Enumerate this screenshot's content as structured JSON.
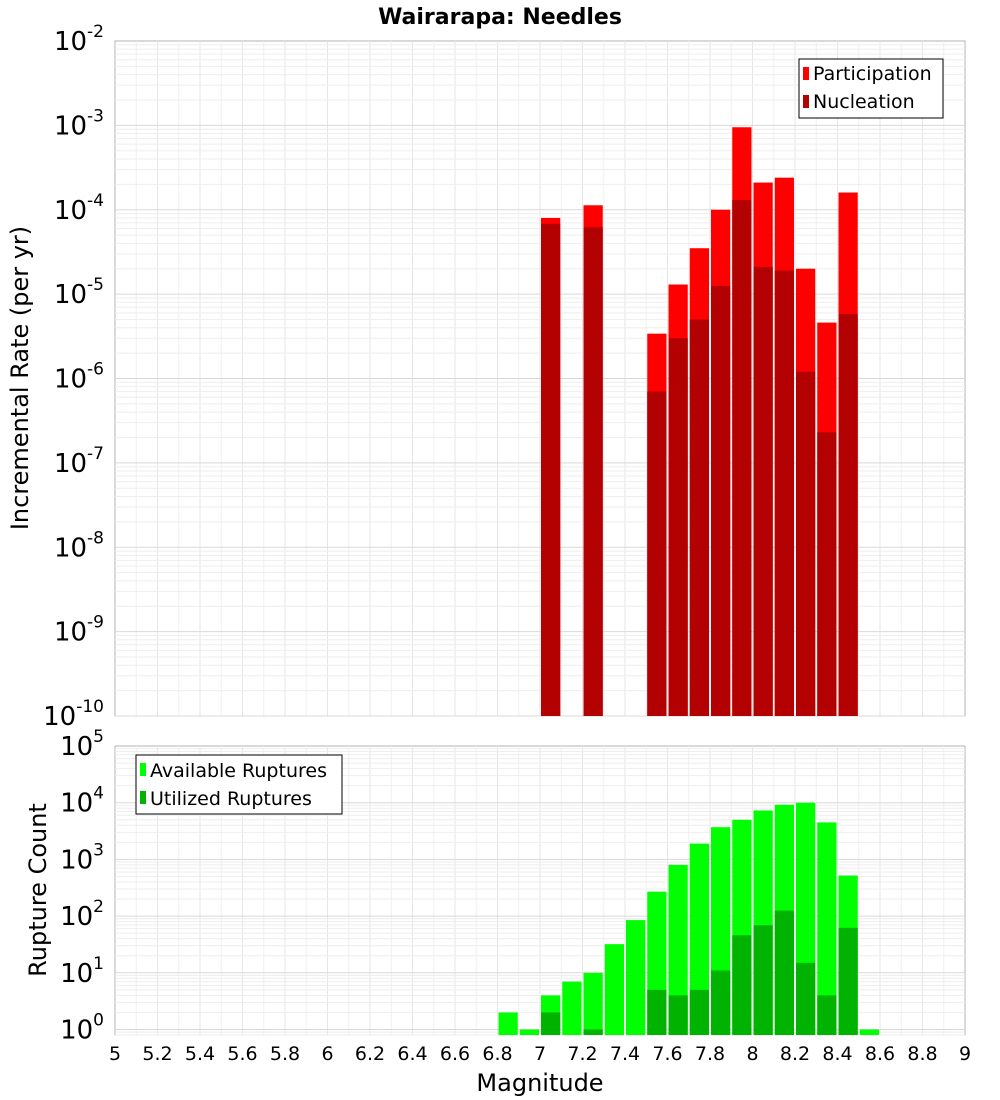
{
  "title": "Wairarapa: Needles",
  "chart_data": [
    {
      "type": "bar",
      "panel": "top",
      "ylabel": "Incremental Rate (per yr)",
      "yscale": "log",
      "ylim": [
        1e-10,
        0.01
      ],
      "xlim": [
        5,
        9
      ],
      "grid": true,
      "legend_position": "top-right",
      "series": [
        {
          "name": "Participation",
          "color": "#ff0000",
          "x": [
            7.05,
            7.25,
            7.55,
            7.65,
            7.75,
            7.85,
            7.95,
            8.05,
            8.15,
            8.25,
            8.35,
            8.45
          ],
          "values": [
            8e-05,
            0.000113,
            3.4e-06,
            1.3e-05,
            3.5e-05,
            0.0001,
            0.00095,
            0.00021,
            0.00024,
            2e-05,
            4.6e-06,
            0.00016
          ]
        },
        {
          "name": "Nucleation",
          "color": "#b30000",
          "x": [
            7.05,
            7.25,
            7.55,
            7.65,
            7.75,
            7.85,
            7.95,
            8.05,
            8.15,
            8.25,
            8.35,
            8.45
          ],
          "values": [
            6.8e-05,
            6.2e-05,
            7e-07,
            3e-06,
            5e-06,
            1.25e-05,
            0.00013,
            2.1e-05,
            1.9e-05,
            1.2e-06,
            2.3e-07,
            5.8e-06
          ]
        }
      ],
      "yticks": [
        {
          "base": "10",
          "exp": "-2"
        },
        {
          "base": "10",
          "exp": "-3"
        },
        {
          "base": "10",
          "exp": "-4"
        },
        {
          "base": "10",
          "exp": "-5"
        },
        {
          "base": "10",
          "exp": "-6"
        },
        {
          "base": "10",
          "exp": "-7"
        },
        {
          "base": "10",
          "exp": "-8"
        },
        {
          "base": "10",
          "exp": "-9"
        },
        {
          "base": "10",
          "exp": "-10"
        }
      ]
    },
    {
      "type": "bar",
      "panel": "bottom",
      "xlabel": "Magnitude",
      "ylabel": "Rupture Count",
      "yscale": "log",
      "ylim": [
        0.8,
        100000.0
      ],
      "xlim": [
        5,
        9
      ],
      "grid": true,
      "legend_position": "top-left",
      "series": [
        {
          "name": "Available Ruptures",
          "color": "#00ff00",
          "x": [
            6.85,
            6.95,
            7.05,
            7.15,
            7.25,
            7.35,
            7.45,
            7.55,
            7.65,
            7.75,
            7.85,
            7.95,
            8.05,
            8.15,
            8.25,
            8.35,
            8.45,
            8.55
          ],
          "values": [
            2,
            1,
            4,
            7,
            10,
            32,
            85,
            270,
            800,
            1900,
            3700,
            5000,
            7300,
            9200,
            10000,
            4500,
            520,
            1
          ]
        },
        {
          "name": "Utilized Ruptures",
          "color": "#00b300",
          "x": [
            7.05,
            7.25,
            7.55,
            7.65,
            7.75,
            7.85,
            7.95,
            8.05,
            8.15,
            8.25,
            8.35,
            8.45
          ],
          "values": [
            2,
            1,
            5,
            4,
            5,
            11,
            46,
            69,
            125,
            15,
            4,
            62
          ]
        }
      ],
      "yticks": [
        {
          "base": "10",
          "exp": "5"
        },
        {
          "base": "10",
          "exp": "4"
        },
        {
          "base": "10",
          "exp": "3"
        },
        {
          "base": "10",
          "exp": "2"
        },
        {
          "base": "10",
          "exp": "1"
        },
        {
          "base": "10",
          "exp": "0"
        }
      ]
    }
  ],
  "xticks": [
    "5",
    "5.2",
    "5.4",
    "5.6",
    "5.8",
    "6",
    "6.2",
    "6.4",
    "6.6",
    "6.8",
    "7",
    "7.2",
    "7.4",
    "7.6",
    "7.8",
    "8",
    "8.2",
    "8.4",
    "8.6",
    "8.8",
    "9"
  ]
}
